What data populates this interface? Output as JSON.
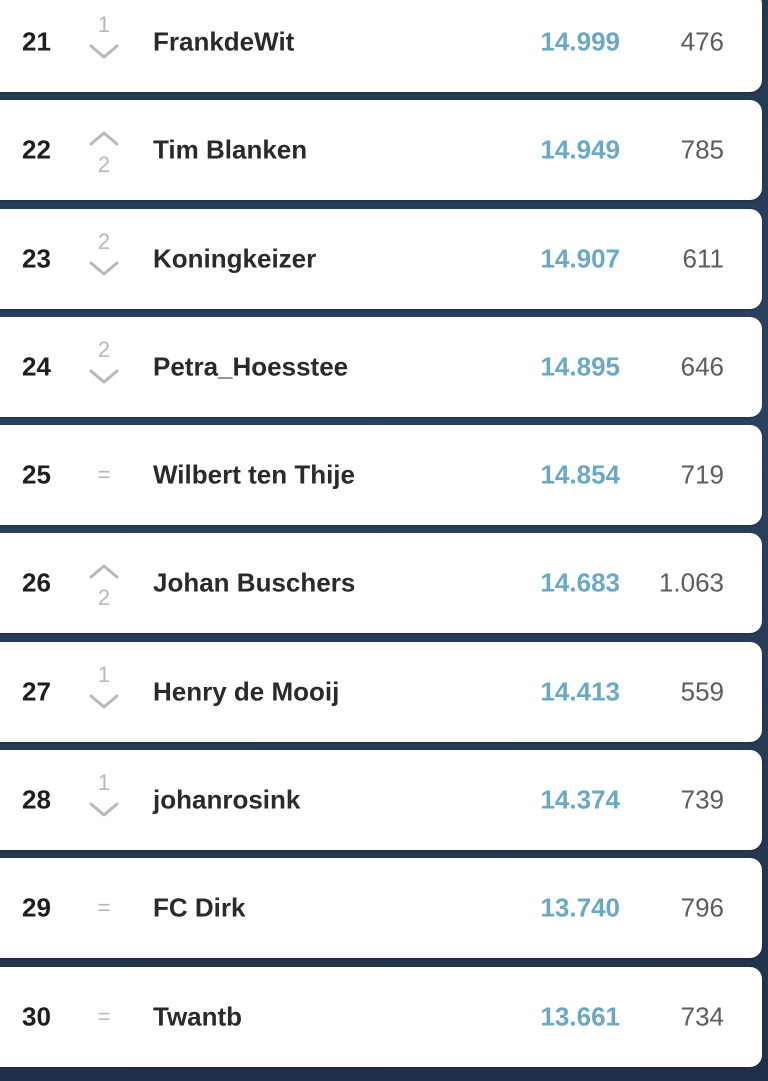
{
  "rows": [
    {
      "rank": "21",
      "change": "1",
      "direction": "down",
      "name": "FrankdeWit",
      "points": "14.999",
      "count": "476"
    },
    {
      "rank": "22",
      "change": "2",
      "direction": "up",
      "name": "Tim Blanken",
      "points": "14.949",
      "count": "785"
    },
    {
      "rank": "23",
      "change": "2",
      "direction": "down",
      "name": "Koningkeizer",
      "points": "14.907",
      "count": "611"
    },
    {
      "rank": "24",
      "change": "2",
      "direction": "down",
      "name": "Petra_Hoesstee",
      "points": "14.895",
      "count": "646"
    },
    {
      "rank": "25",
      "change": "=",
      "direction": "same",
      "name": "Wilbert ten Thije",
      "points": "14.854",
      "count": "719"
    },
    {
      "rank": "26",
      "change": "2",
      "direction": "up",
      "name": "Johan Buschers",
      "points": "14.683",
      "count": "1.063"
    },
    {
      "rank": "27",
      "change": "1",
      "direction": "down",
      "name": "Henry de Mooij",
      "points": "14.413",
      "count": "559"
    },
    {
      "rank": "28",
      "change": "1",
      "direction": "down",
      "name": "johanrosink",
      "points": "14.374",
      "count": "739"
    },
    {
      "rank": "29",
      "change": "=",
      "direction": "same",
      "name": "FC Dirk",
      "points": "13.740",
      "count": "796"
    },
    {
      "rank": "30",
      "change": "=",
      "direction": "same",
      "name": "Twantb",
      "points": "13.661",
      "count": "734"
    }
  ],
  "colors": {
    "points": "#6aa8c8",
    "change_indicator": "#b8b8b8",
    "background": "#25395a"
  }
}
